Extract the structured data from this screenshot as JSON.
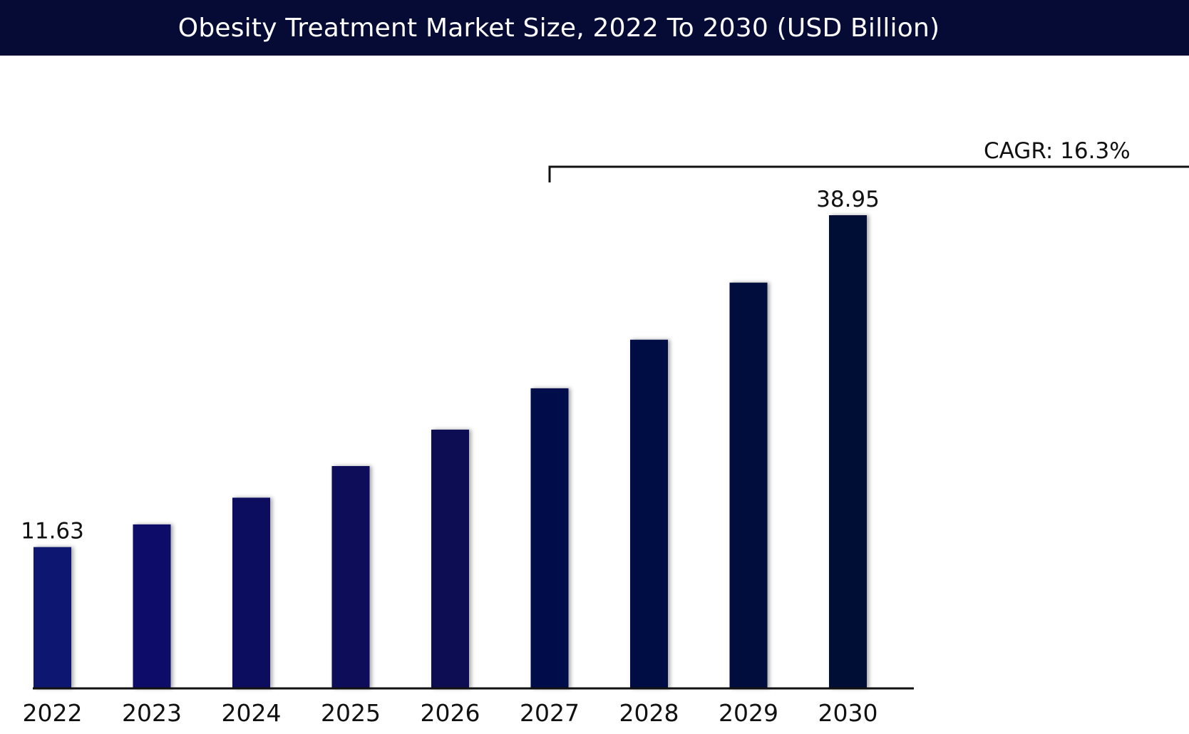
{
  "chart_data": {
    "type": "bar",
    "title": "Obesity Treatment Market Size, 2022 To 2030 (USD Billion)",
    "xlabel": "",
    "ylabel": "",
    "categories": [
      "2022",
      "2023",
      "2024",
      "2025",
      "2026",
      "2027",
      "2028",
      "2029",
      "2030"
    ],
    "values": [
      11.63,
      13.5,
      15.7,
      18.3,
      21.3,
      24.7,
      28.7,
      33.4,
      38.95
    ],
    "data_labels": {
      "2022": "11.63",
      "2030": "38.95"
    },
    "ylim": [
      0,
      38.95
    ],
    "grid": false,
    "legend": "none",
    "annotation": {
      "text": "CAGR: 16.3%",
      "from_category": "2027"
    },
    "colors": {
      "title_background": "#050b35",
      "title_text": "#ffffff",
      "bar_start": "#081270",
      "bar_end": "#050b35",
      "axis": "#111111"
    }
  }
}
